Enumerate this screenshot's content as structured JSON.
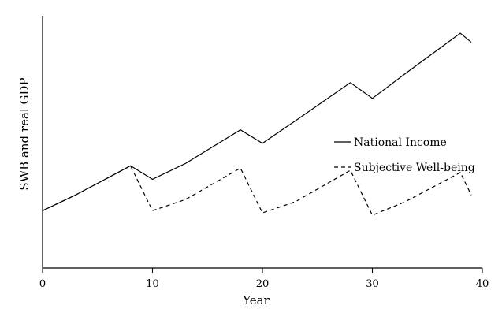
{
  "chart_data": {
    "type": "line",
    "xlabel": "Year",
    "ylabel": "SWB and real GDP",
    "xlim": [
      0,
      40
    ],
    "ylim": [
      0,
      10
    ],
    "x_ticks": [
      0,
      10,
      20,
      30,
      40
    ],
    "grid": false,
    "legend_position": "right",
    "series": [
      {
        "name": "National Income",
        "style": "solid",
        "color": "#000000",
        "x": [
          0,
          3,
          8,
          10,
          13,
          18,
          20,
          23,
          28,
          30,
          33,
          38,
          39
        ],
        "y": [
          2.2,
          2.9,
          4.2,
          3.6,
          4.3,
          5.8,
          5.2,
          6.2,
          7.9,
          7.2,
          8.3,
          10.1,
          9.7
        ]
      },
      {
        "name": "Subjective Well-being",
        "style": "dashed",
        "color": "#000000",
        "x": [
          0,
          3,
          8,
          10,
          13,
          18,
          20,
          23,
          28,
          30,
          33,
          38,
          39
        ],
        "y": [
          2.2,
          2.9,
          4.2,
          2.2,
          2.7,
          4.1,
          2.1,
          2.6,
          4.0,
          2.0,
          2.6,
          3.9,
          2.9
        ]
      }
    ]
  }
}
